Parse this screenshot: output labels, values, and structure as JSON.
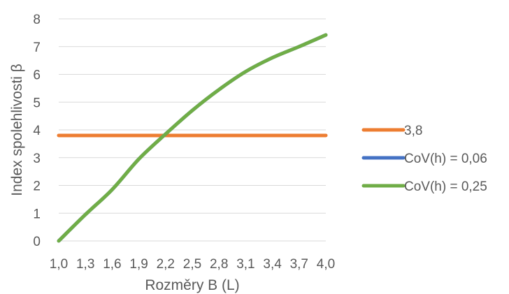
{
  "chart_data": {
    "type": "line",
    "xlabel": "Rozměry B (L)",
    "ylabel": "Index spolehlivosti β",
    "categories": [
      "1,0",
      "1,3",
      "1,6",
      "1,9",
      "2,2",
      "2,5",
      "2,8",
      "3,1",
      "3,4",
      "3,7",
      "4,0"
    ],
    "ylim": [
      0,
      8
    ],
    "yticks": [
      "0",
      "1",
      "2",
      "3",
      "4",
      "5",
      "6",
      "7",
      "8"
    ],
    "grid": true,
    "legend_position": "right",
    "series": [
      {
        "name": "3,8",
        "color": "#ED7D31",
        "values": [
          3.8,
          3.8,
          3.8,
          3.8,
          3.8,
          3.8,
          3.8,
          3.8,
          3.8,
          3.8,
          3.8
        ]
      },
      {
        "name": "CoV(h) = 0,06",
        "color": "#4472C4",
        "values": [
          0.0,
          0.95,
          1.85,
          2.95,
          3.85,
          4.7,
          5.45,
          6.1,
          6.6,
          7.0,
          7.42
        ]
      },
      {
        "name": "CoV(h) = 0,25",
        "color": "#70AD47",
        "values": [
          0.0,
          0.95,
          1.85,
          2.95,
          3.85,
          4.7,
          5.45,
          6.1,
          6.6,
          7.0,
          7.42
        ]
      }
    ]
  }
}
